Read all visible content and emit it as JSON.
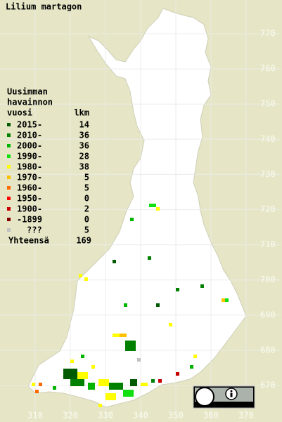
{
  "title": "Lilium martagon",
  "legend": {
    "header": [
      "Uusimman",
      "havainnon",
      "vuosi"
    ],
    "count_header": "lkm",
    "items": [
      {
        "label": "2015-",
        "count": 14,
        "color": "#005a00"
      },
      {
        "label": "2010-",
        "count": 36,
        "color": "#008000"
      },
      {
        "label": "2000-",
        "count": 36,
        "color": "#00b400"
      },
      {
        "label": "1990-",
        "count": 28,
        "color": "#10e010"
      },
      {
        "label": "1980-",
        "count": 38,
        "color": "#ffff00"
      },
      {
        "label": "1970-",
        "count": 5,
        "color": "#ffc000"
      },
      {
        "label": "1960-",
        "count": 5,
        "color": "#ff6a00"
      },
      {
        "label": "1950-",
        "count": 0,
        "color": "#ff0000"
      },
      {
        "label": "1900-",
        "count": 2,
        "color": "#c80000"
      },
      {
        "label": "-1899",
        "count": 0,
        "color": "#800000"
      },
      {
        "label": "???",
        "count": 5,
        "color": "#c0c0c0"
      }
    ],
    "total_label": "Yhteensä",
    "total": 169
  },
  "map": {
    "xticks": [
      310,
      320,
      330,
      340,
      350,
      360,
      370
    ],
    "yticks": [
      670,
      680,
      690,
      700,
      710,
      720,
      730,
      740,
      750,
      760,
      770
    ],
    "xlim": [
      300,
      380
    ],
    "ylim": [
      660,
      780
    ]
  }
}
